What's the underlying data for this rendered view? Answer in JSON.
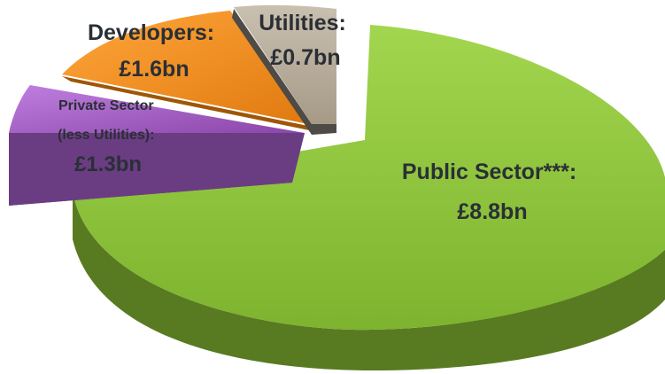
{
  "chart_data": {
    "type": "pie",
    "title": "",
    "legend": "none",
    "style": "3d-exploded",
    "slices": [
      {
        "label": "Public Sector***:",
        "value_label": "£8.8bn",
        "value": 8.8,
        "color": "#8cc63f",
        "side_color": "#5b7f24"
      },
      {
        "label": "Private Sector (less Utilities):",
        "label_lines": [
          "Private Sector",
          "(less Utilities):"
        ],
        "value_label": "£1.3bn",
        "value": 1.3,
        "color": "#9b59b6",
        "side_color": "#5c3570"
      },
      {
        "label": "Developers:",
        "value_label": "£1.6bn",
        "value": 1.6,
        "color": "#f28c1c",
        "side_color": "#a15508"
      },
      {
        "label": "Utilities:",
        "value_label": "£0.7bn",
        "value": 0.7,
        "color": "#b5aa98",
        "side_color": "#55504a"
      }
    ]
  }
}
